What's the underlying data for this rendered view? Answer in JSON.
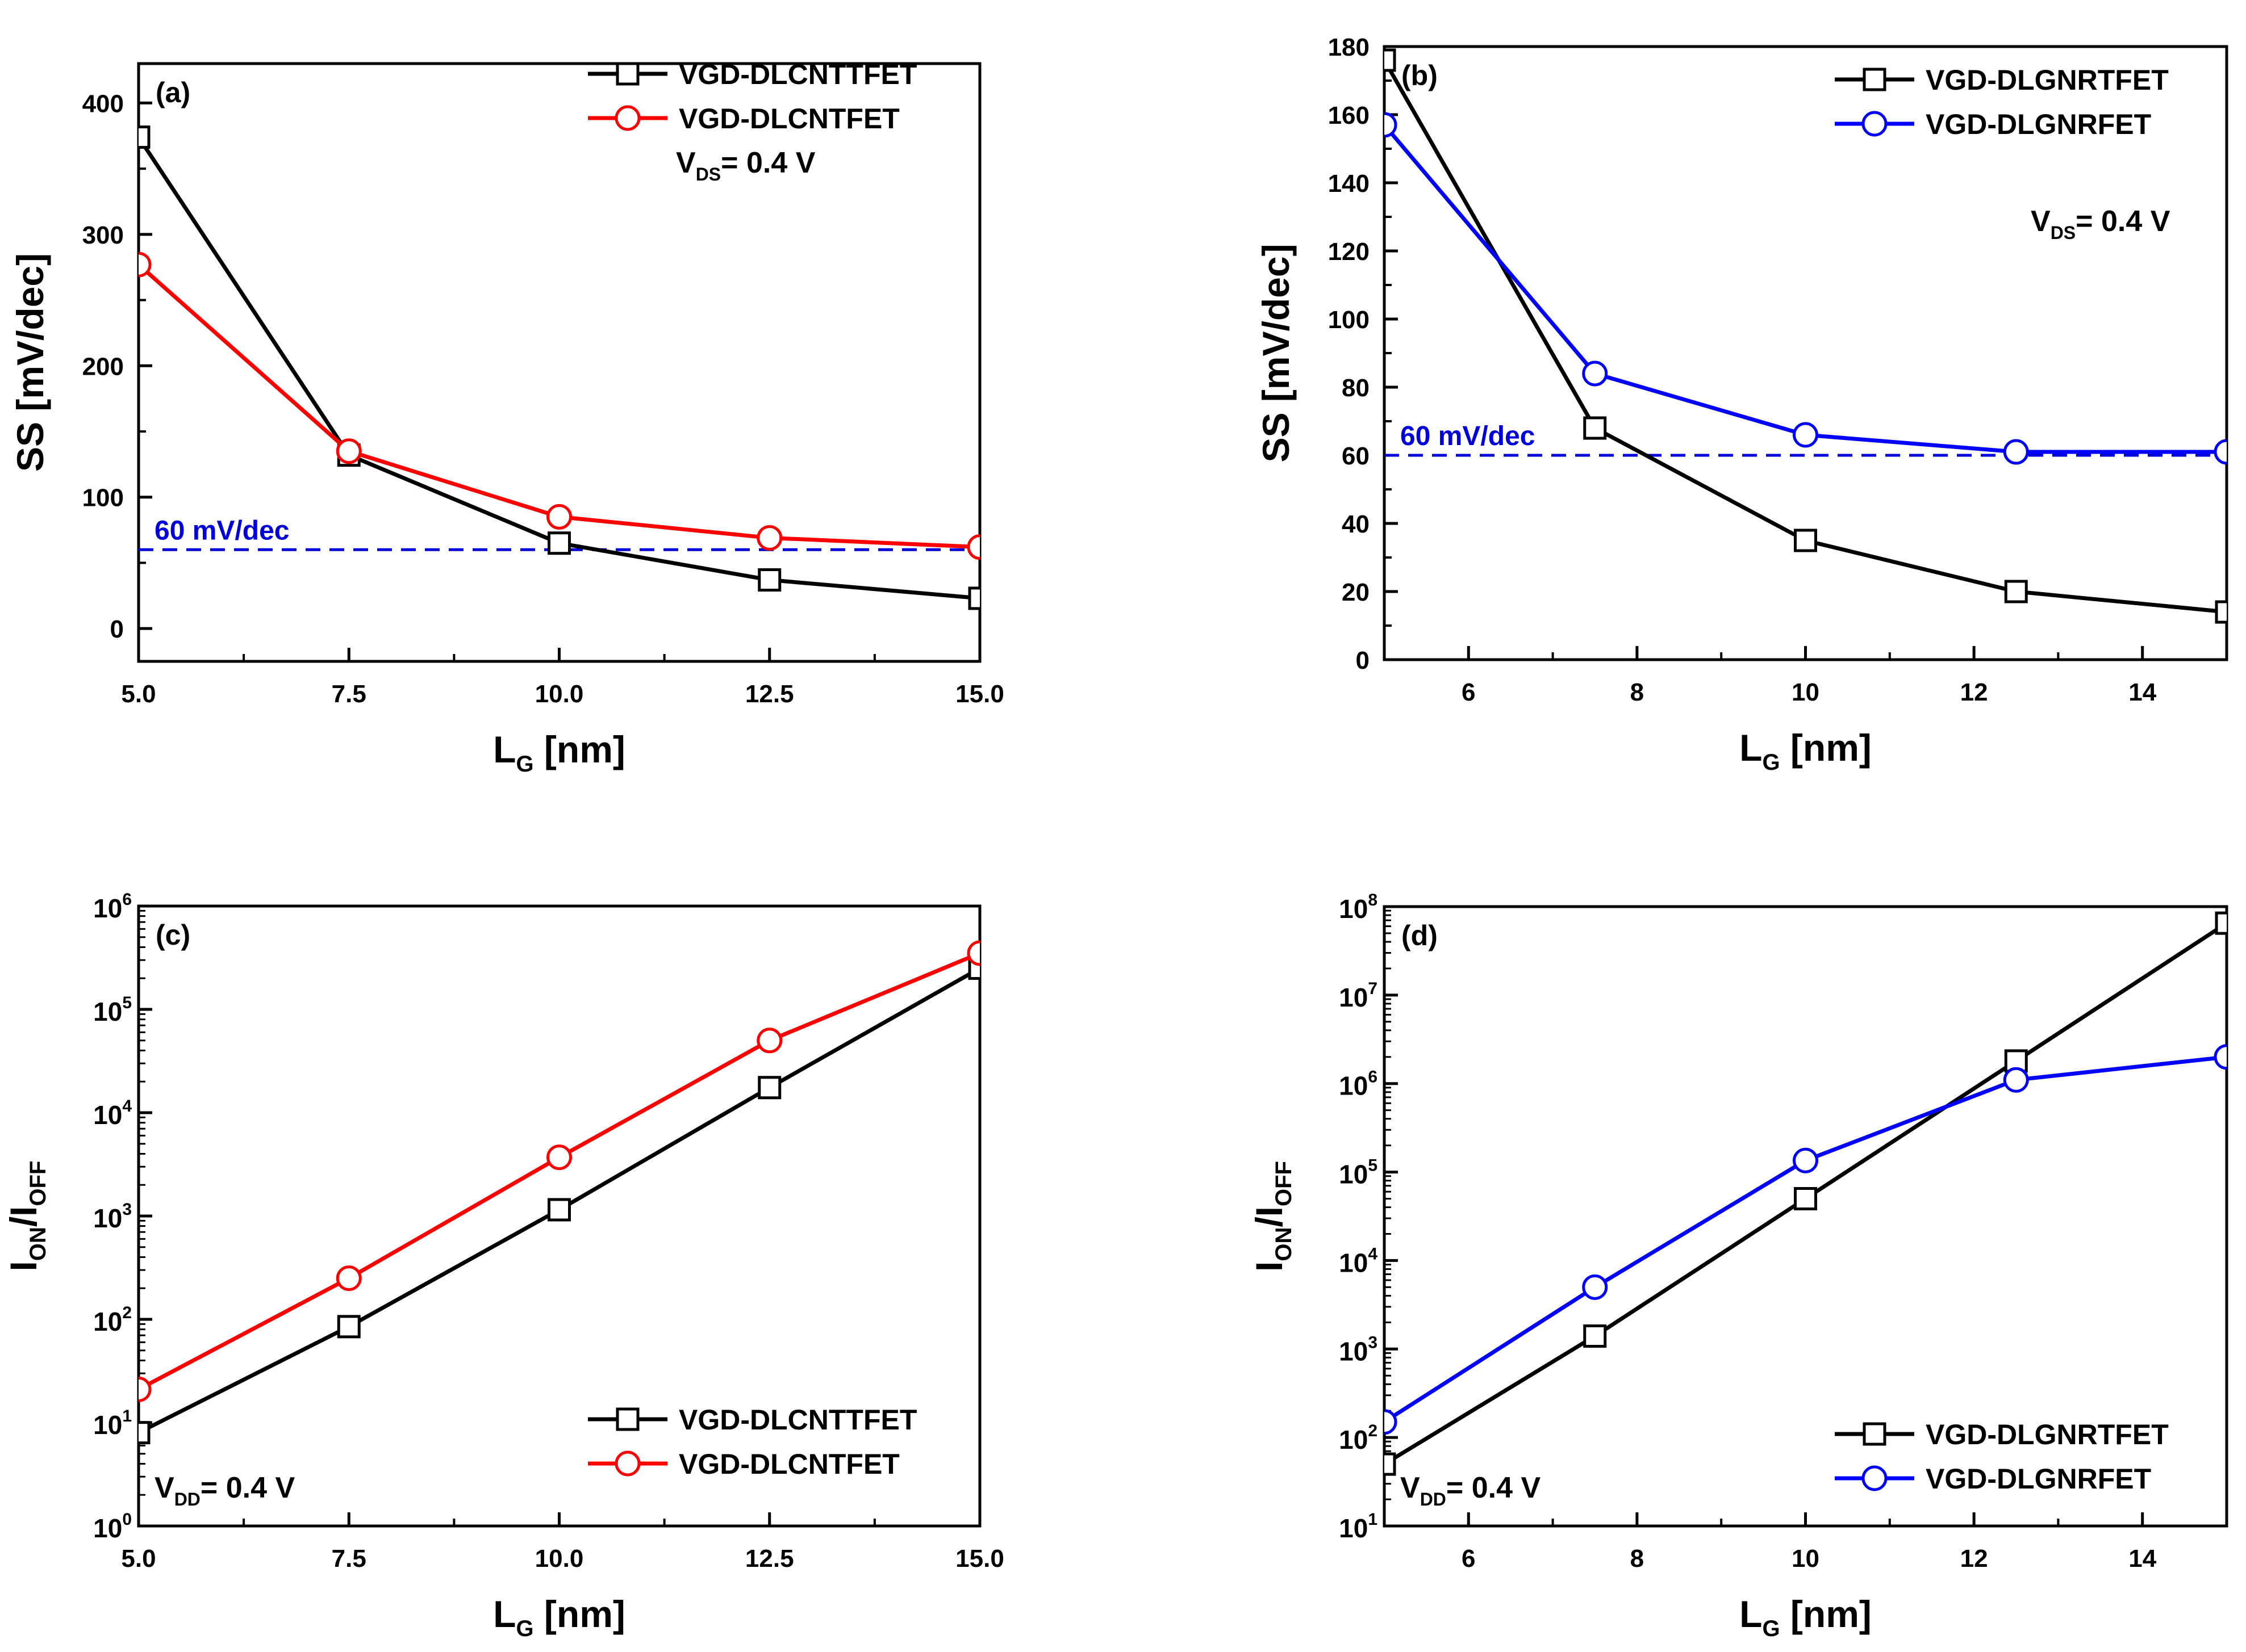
{
  "chart_data": [
    {
      "panel": "(a)",
      "type": "line",
      "xscale": "linear",
      "yscale": "linear",
      "xlabel": "L",
      "xlabel_sub": "G",
      "xlabel_unit": " [nm]",
      "ylabel": "SS [mV/dec]",
      "xlim": [
        5,
        15
      ],
      "ylim": [
        -25,
        430
      ],
      "x_ticks": [
        5,
        7.5,
        10,
        12.5,
        15
      ],
      "x_tick_labels": [
        "5.0",
        "7.5",
        "10.0",
        "12.5",
        "15.0"
      ],
      "y_ticks": [
        0,
        100,
        200,
        300,
        400
      ],
      "y_tick_labels": [
        "0",
        "100",
        "200",
        "300",
        "400"
      ],
      "series": [
        {
          "name": "VGD-DLCNTTFET",
          "color": "#000000",
          "marker": "square",
          "x": [
            5,
            7.5,
            10,
            12.5,
            15
          ],
          "y": [
            374,
            132,
            65,
            37,
            23
          ]
        },
        {
          "name": "VGD-DLCNTFET",
          "color": "#ff0000",
          "marker": "circle",
          "x": [
            5,
            7.5,
            10,
            12.5,
            15
          ],
          "y": [
            277,
            135,
            85,
            69,
            62
          ]
        }
      ],
      "reference_line": {
        "y": 60,
        "label": "60 mV/dec",
        "color": "#0000dd"
      },
      "annotation": {
        "main": "V",
        "sub": "DS",
        "rest": "= 0.4 V"
      },
      "legend_position": "top-right"
    },
    {
      "panel": "(b)",
      "type": "line",
      "xscale": "linear",
      "yscale": "linear",
      "xlabel": "L",
      "xlabel_sub": "G",
      "xlabel_unit": " [nm]",
      "ylabel": "SS [mV/dec]",
      "xlim": [
        5,
        15
      ],
      "ylim": [
        0,
        180
      ],
      "x_ticks": [
        6,
        8,
        10,
        12,
        14
      ],
      "x_tick_labels": [
        "6",
        "8",
        "10",
        "12",
        "14"
      ],
      "y_ticks": [
        0,
        20,
        40,
        60,
        80,
        100,
        120,
        140,
        160,
        180
      ],
      "y_tick_labels": [
        "0",
        "20",
        "40",
        "60",
        "80",
        "100",
        "120",
        "140",
        "160",
        "180"
      ],
      "series": [
        {
          "name": "VGD-DLGNRTFET",
          "color": "#000000",
          "marker": "square",
          "x": [
            5,
            7.5,
            10,
            12.5,
            15
          ],
          "y": [
            176,
            68,
            35,
            20,
            14
          ]
        },
        {
          "name": "VGD-DLGNRFET",
          "color": "#0000ff",
          "marker": "circle",
          "x": [
            5,
            7.5,
            10,
            12.5,
            15
          ],
          "y": [
            157,
            84,
            66,
            61,
            61
          ]
        }
      ],
      "reference_line": {
        "y": 60,
        "label": "60 mV/dec",
        "color": "#0000dd"
      },
      "annotation": {
        "main": "V",
        "sub": "DS",
        "rest": "= 0.4 V"
      },
      "legend_position": "top-right"
    },
    {
      "panel": "(c)",
      "type": "line",
      "xscale": "linear",
      "yscale": "log",
      "xlabel": "L",
      "xlabel_sub": "G",
      "xlabel_unit": " [nm]",
      "ylabel_main": "I",
      "ylabel_sub1": "ON",
      "ylabel_mid": "/I",
      "ylabel_sub2": "OFF",
      "xlim": [
        5,
        15
      ],
      "ylim": [
        1,
        1000000
      ],
      "x_ticks": [
        5,
        7.5,
        10,
        12.5,
        15
      ],
      "x_tick_labels": [
        "5.0",
        "7.5",
        "10.0",
        "12.5",
        "15.0"
      ],
      "y_ticks": [
        1,
        10,
        100,
        1000,
        10000,
        100000,
        1000000
      ],
      "y_tick_base": "10",
      "y_tick_exponents": [
        "0",
        "1",
        "2",
        "3",
        "4",
        "5",
        "6"
      ],
      "series": [
        {
          "name": "VGD-DLCNTTFET",
          "color": "#000000",
          "marker": "square",
          "x": [
            5,
            7.5,
            10,
            12.5,
            15
          ],
          "y": [
            8,
            85,
            1150,
            17500,
            250000
          ]
        },
        {
          "name": "VGD-DLCNTFET",
          "color": "#ff0000",
          "marker": "circle",
          "x": [
            5,
            7.5,
            10,
            12.5,
            15
          ],
          "y": [
            21,
            250,
            3700,
            50000,
            350000
          ]
        }
      ],
      "annotation": {
        "main": "V",
        "sub": "DD",
        "rest": "= 0.4 V"
      },
      "legend_position": "bottom-right"
    },
    {
      "panel": "(d)",
      "type": "line",
      "xscale": "linear",
      "yscale": "log",
      "xlabel": "L",
      "xlabel_sub": "G",
      "xlabel_unit": " [nm]",
      "ylabel_main": "I",
      "ylabel_sub1": "ON",
      "ylabel_mid": "/I",
      "ylabel_sub2": "OFF",
      "xlim": [
        5,
        15
      ],
      "ylim": [
        10,
        100000000
      ],
      "x_ticks": [
        6,
        8,
        10,
        12,
        14
      ],
      "x_tick_labels": [
        "6",
        "8",
        "10",
        "12",
        "14"
      ],
      "y_ticks": [
        10,
        100,
        1000,
        10000,
        100000,
        1000000,
        10000000,
        100000000
      ],
      "y_tick_base": "10",
      "y_tick_exponents": [
        "1",
        "2",
        "3",
        "4",
        "5",
        "6",
        "7",
        "8"
      ],
      "series": [
        {
          "name": "VGD-DLGNRTFET",
          "color": "#000000",
          "marker": "square",
          "x": [
            5,
            7.5,
            10,
            12.5,
            15
          ],
          "y": [
            50,
            1400,
            50000,
            1800000,
            65000000
          ]
        },
        {
          "name": "VGD-DLGNRFET",
          "color": "#0000ff",
          "marker": "circle",
          "x": [
            5,
            7.5,
            10,
            12.5,
            15
          ],
          "y": [
            150,
            5000,
            135000,
            1100000,
            2000000
          ]
        }
      ],
      "annotation": {
        "main": "V",
        "sub": "DD",
        "rest": "= 0.4 V"
      },
      "legend_position": "bottom-right"
    }
  ]
}
